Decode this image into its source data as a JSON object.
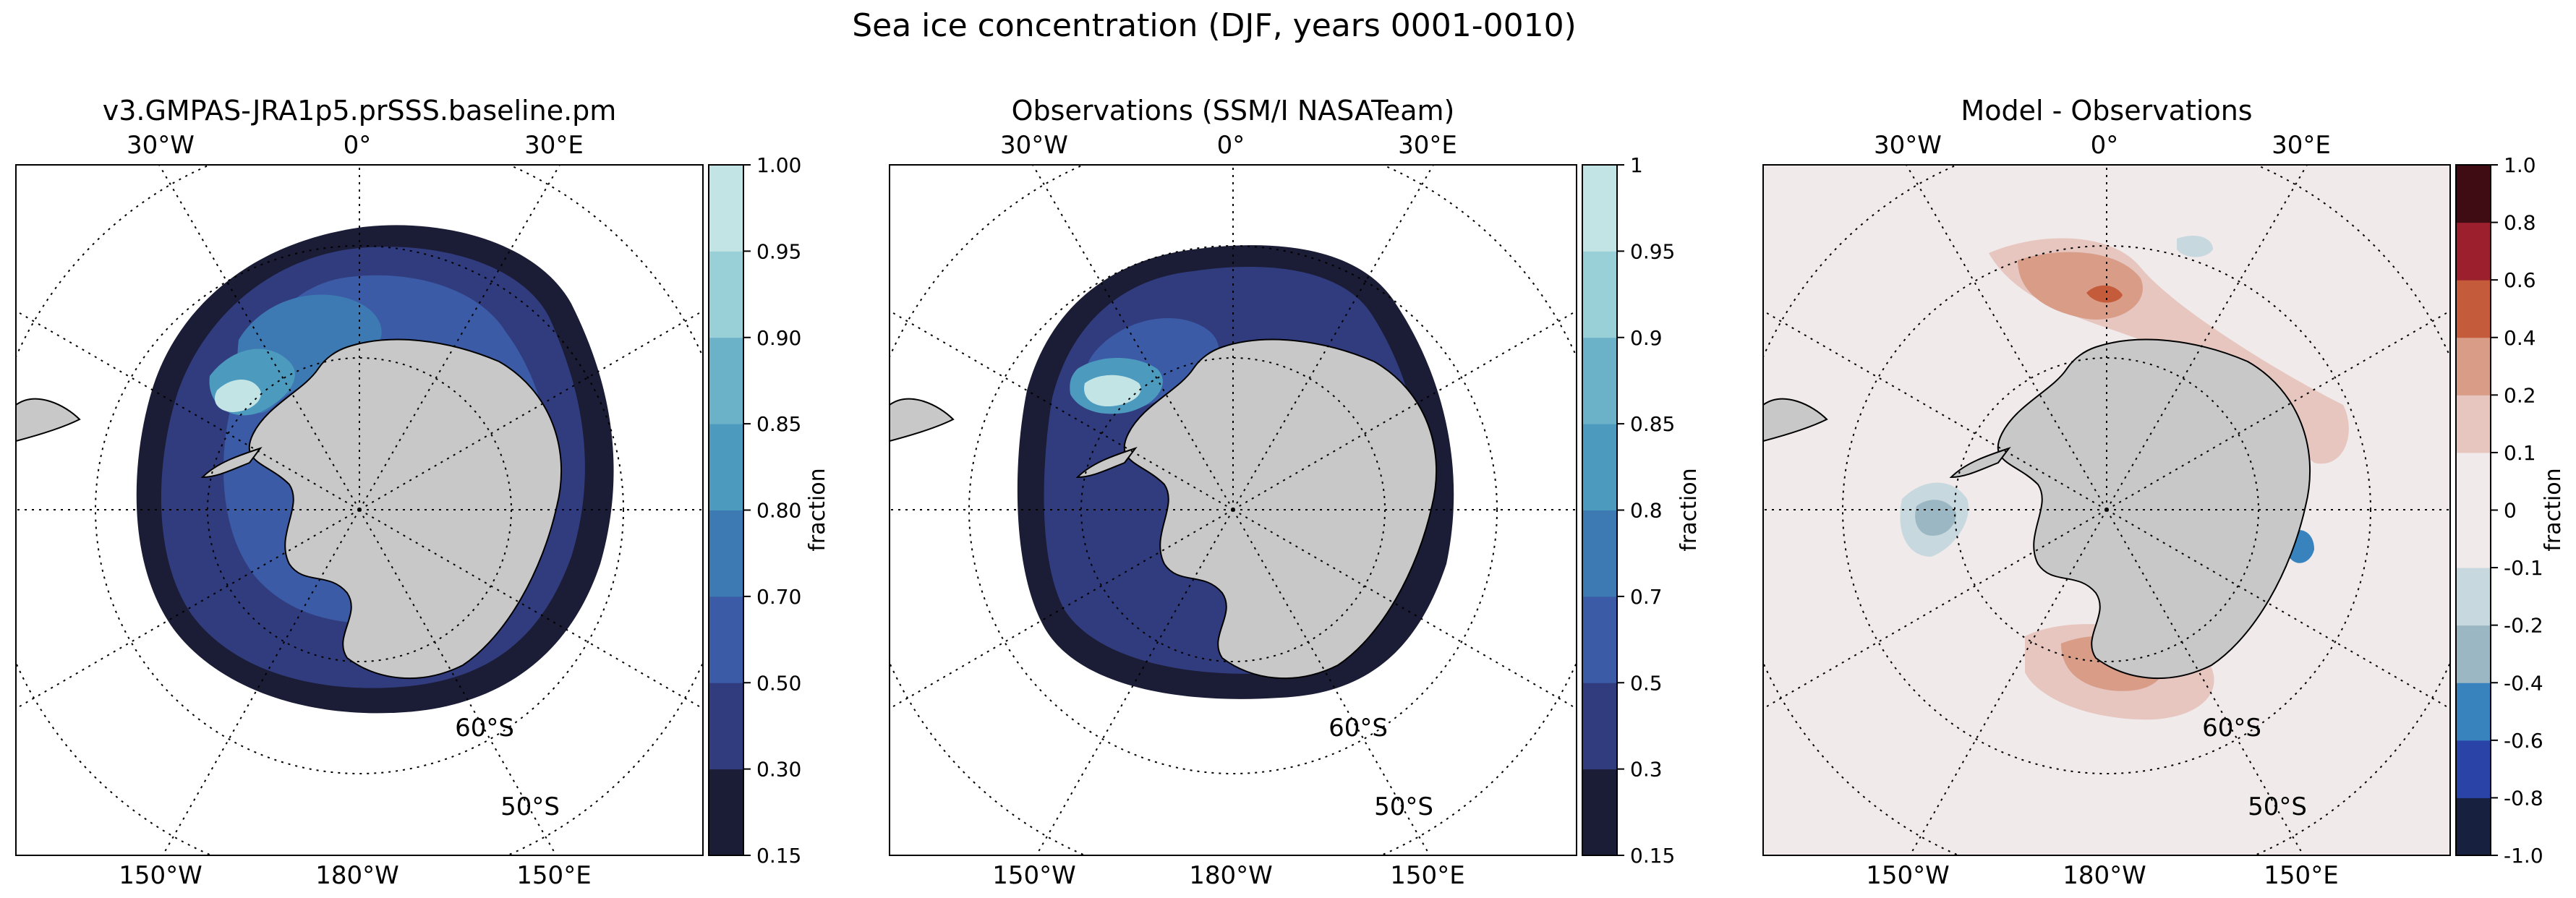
{
  "figure": {
    "suptitle": "Sea ice concentration (DJF, years 0001-0010)"
  },
  "chart_data": [
    {
      "type": "heatmap",
      "title": "v3.GMPAS-JRA1p5.prSSS.baseline.pm",
      "projection": "south polar stereographic",
      "lon_labels_top": [
        "30°W",
        "0°",
        "30°E"
      ],
      "lon_labels_bottom": [
        "150°W",
        "180°W",
        "150°E"
      ],
      "lat_labels": [
        "60°S",
        "50°S"
      ],
      "colorbar": {
        "label": "fraction",
        "levels": [
          0.15,
          0.3,
          0.5,
          0.7,
          0.8,
          0.85,
          0.9,
          0.95,
          1.0
        ],
        "tick_labels": [
          "0.15",
          "0.30",
          "0.50",
          "0.70",
          "0.80",
          "0.85",
          "0.90",
          "0.95",
          "1.00"
        ],
        "colors": [
          "#1b1c35",
          "#313c7f",
          "#3b5ba6",
          "#3d7ab3",
          "#4d9abf",
          "#6bb1c8",
          "#99cfd6",
          "#c2e4e4",
          "#eafafa"
        ]
      }
    },
    {
      "type": "heatmap",
      "title": "Observations (SSM/I NASATeam)",
      "projection": "south polar stereographic",
      "lon_labels_top": [
        "30°W",
        "0°",
        "30°E"
      ],
      "lon_labels_bottom": [
        "150°W",
        "180°W",
        "150°E"
      ],
      "lat_labels": [
        "60°S",
        "50°S"
      ],
      "colorbar": {
        "label": "fraction",
        "levels": [
          0.15,
          0.3,
          0.5,
          0.7,
          0.8,
          0.85,
          0.9,
          0.95,
          1
        ],
        "tick_labels": [
          "0.15",
          "0.3",
          "0.5",
          "0.7",
          "0.8",
          "0.85",
          "0.9",
          "0.95",
          "1"
        ],
        "colors": [
          "#1b1c35",
          "#313c7f",
          "#3b5ba6",
          "#3d7ab3",
          "#4d9abf",
          "#6bb1c8",
          "#99cfd6",
          "#c2e4e4",
          "#eafafa"
        ]
      }
    },
    {
      "type": "heatmap",
      "title": "Model - Observations",
      "projection": "south polar stereographic",
      "lon_labels_top": [
        "30°W",
        "0°",
        "30°E"
      ],
      "lon_labels_bottom": [
        "150°W",
        "180°W",
        "150°E"
      ],
      "lat_labels": [
        "60°S",
        "50°S"
      ],
      "colorbar": {
        "label": "fraction",
        "levels": [
          -1.0,
          -0.8,
          -0.6,
          -0.4,
          -0.2,
          -0.1,
          0,
          0.1,
          0.2,
          0.4,
          0.6,
          0.8,
          1.0
        ],
        "tick_labels": [
          "-1.0",
          "-0.8",
          "-0.6",
          "-0.4",
          "-0.2",
          "-0.1",
          "0",
          "0.1",
          "0.2",
          "0.4",
          "0.6",
          "0.8",
          "1.0"
        ],
        "colors": [
          "#17203f",
          "#2944a6",
          "#3883bd",
          "#9bb7c3",
          "#c7d8de",
          "#f1eaea",
          "#f1eaea",
          "#e6c6bf",
          "#d89c87",
          "#c45b3a",
          "#9b1f2c",
          "#3f0c14"
        ]
      }
    }
  ]
}
